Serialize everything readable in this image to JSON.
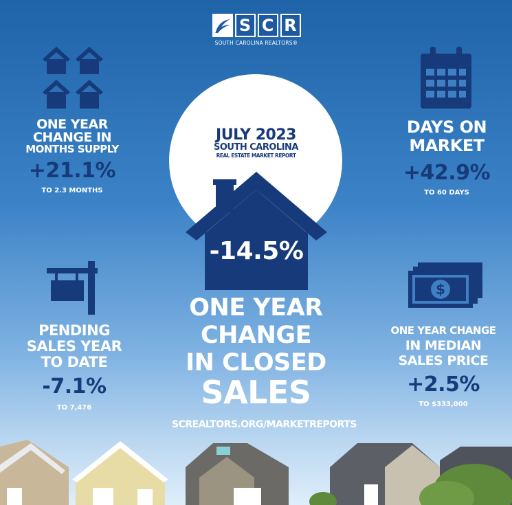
{
  "logo": {
    "letters": [
      "S",
      "C",
      "R"
    ],
    "subtitle": "SOUTH CAROLINA REALTORS®"
  },
  "report": {
    "line1": "JULY 2023",
    "line2": "SOUTH CAROLINA",
    "line3": "REAL ESTATE MARKET REPORT"
  },
  "closed_sales": {
    "value": "-14.5%",
    "label_lines": [
      "ONE YEAR",
      "CHANGE",
      "IN CLOSED",
      "SALES"
    ]
  },
  "months_supply": {
    "title_lines": [
      "ONE YEAR",
      "CHANGE IN",
      "MONTHS SUPPLY"
    ],
    "value": "+21.1%",
    "sub": "TO 2.3 MONTHS",
    "icon": "houses-icon"
  },
  "days_on_market": {
    "title_lines": [
      "DAYS ON",
      "MARKET"
    ],
    "value": "+42.9%",
    "sub": "TO 60 DAYS",
    "icon": "calendar-icon"
  },
  "pending_sales": {
    "title_lines": [
      "PENDING",
      "SALES YEAR",
      "TO DATE"
    ],
    "value": "-7.1%",
    "sub": "TO 7,476",
    "icon": "sign-post-icon"
  },
  "median_price": {
    "title_lines": [
      "ONE YEAR CHANGE",
      "IN MEDIAN",
      "SALES PRICE"
    ],
    "value": "+2.5%",
    "sub": "TO $333,000",
    "icon": "money-icon"
  },
  "url": "SCREALTORS.ORG/MARKETREPORTS",
  "colors": {
    "navy": "#173a7a",
    "sky": "#3b82c7"
  }
}
